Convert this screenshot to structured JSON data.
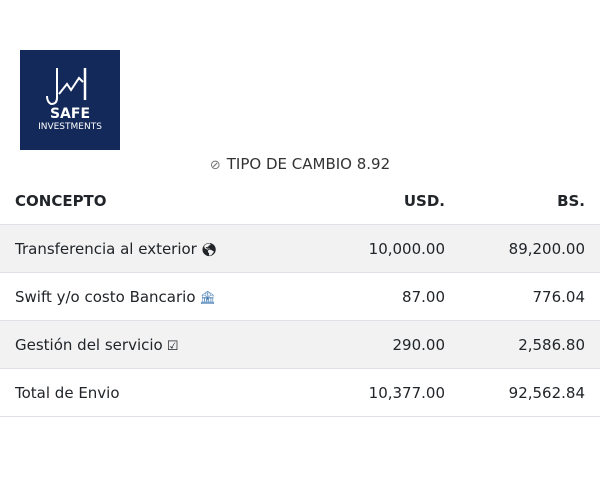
{
  "logo": {
    "line1": "SAFE",
    "line2": "INVESTMENTS",
    "bg": "#13295a"
  },
  "rate": {
    "icon": "coin-icon",
    "label": "TIPO DE CAMBIO 8.92"
  },
  "table": {
    "headers": [
      "CONCEPTO",
      "USD.",
      "BS."
    ],
    "rows": [
      {
        "concept": "Transferencia al exterior",
        "icon": "globe-icon",
        "usd": "10,000.00",
        "bs": "89,200.00"
      },
      {
        "concept": "Swift y/o costo Bancario",
        "icon": "bank-icon",
        "usd": "87.00",
        "bs": "776.04"
      },
      {
        "concept": "Gestión del servicio",
        "icon": "checkbox-icon",
        "usd": "290.00",
        "bs": "2,586.80"
      },
      {
        "concept": "Total de Envio",
        "usd": "10,377.00",
        "bs": "92,562.84"
      }
    ]
  }
}
